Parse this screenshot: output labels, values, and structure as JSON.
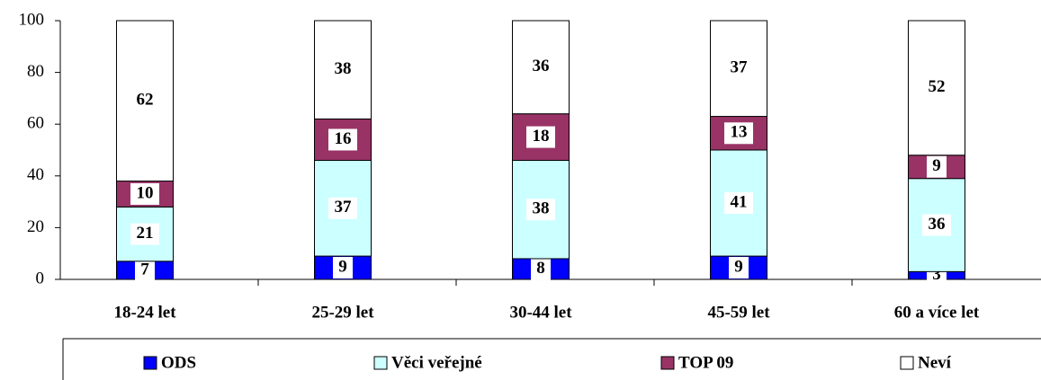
{
  "chart_data": {
    "type": "stacked_bar",
    "categories": [
      "18-24 let",
      "25-29 let",
      "30-44 let",
      "45-59 let",
      "60 a více let"
    ],
    "series": [
      {
        "name": "ODS",
        "color": "#0000ff",
        "values": [
          7,
          9,
          8,
          9,
          3
        ]
      },
      {
        "name": "Věci veřejné",
        "color": "#ccffff",
        "values": [
          21,
          37,
          38,
          41,
          36
        ]
      },
      {
        "name": "TOP 09",
        "color": "#993366",
        "values": [
          10,
          16,
          18,
          13,
          9
        ]
      },
      {
        "name": "Neví",
        "color": "#ffffff",
        "values": [
          62,
          38,
          36,
          37,
          52
        ]
      }
    ],
    "ylim": [
      0,
      100
    ],
    "yticks": [
      0,
      20,
      40,
      60,
      80,
      100
    ],
    "legend": "bottom"
  }
}
